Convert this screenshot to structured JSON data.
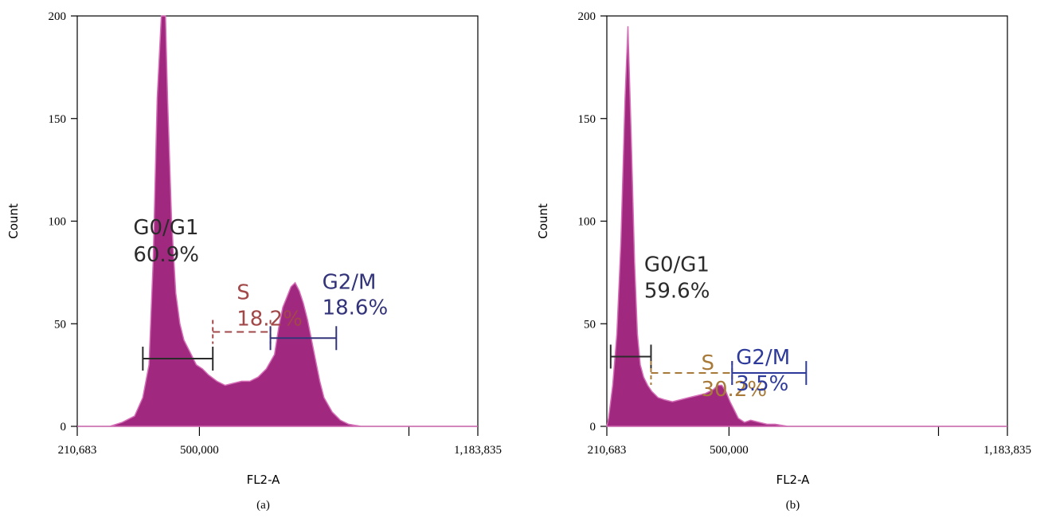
{
  "chart_data": [
    {
      "type": "area",
      "panel_label": "(a)",
      "xlabel": "FL2-A",
      "ylabel": "Count",
      "xlim": [
        210683,
        1183835
      ],
      "ylim": [
        0,
        200
      ],
      "x_tick_labels": [
        "210,683",
        "500,000",
        "1,183,835"
      ],
      "y_tick_labels": [
        "0",
        "50",
        "100",
        "150",
        "200"
      ],
      "colors": {
        "fill": "#a1287f",
        "edge": "#d46fb7"
      },
      "histogram": {
        "x": [
          210683,
          290000,
          320000,
          350000,
          370000,
          385000,
          395000,
          405000,
          415000,
          420000,
          425000,
          430000,
          440000,
          450000,
          460000,
          470000,
          480000,
          490000,
          500000,
          515000,
          530000,
          550000,
          570000,
          590000,
          610000,
          630000,
          650000,
          670000,
          690000,
          700000,
          710000,
          720000,
          730000,
          740000,
          750000,
          760000,
          770000,
          780000,
          790000,
          800000,
          810000,
          830000,
          850000,
          870000,
          900000,
          1183835
        ],
        "y": [
          0,
          0,
          2,
          5,
          14,
          30,
          80,
          160,
          200,
          200,
          200,
          160,
          100,
          65,
          50,
          42,
          38,
          34,
          30,
          28,
          25,
          22,
          20,
          21,
          22,
          22,
          24,
          28,
          35,
          48,
          58,
          63,
          68,
          70,
          66,
          60,
          52,
          42,
          32,
          22,
          14,
          7,
          3,
          1,
          0,
          0
        ]
      },
      "gates": [
        {
          "name": "G0/G1",
          "label": "G0/G1",
          "percent": "60.9%",
          "x_start": 370000,
          "x_end": 540000,
          "y": 33,
          "color": "#2b2b2b",
          "style": "solid"
        },
        {
          "name": "S",
          "label": "S",
          "percent": "18.2%",
          "x_start": 540000,
          "x_end": 680000,
          "y": 46,
          "color": "#a24848",
          "style": "dashed"
        },
        {
          "name": "G2/M",
          "label": "G2/M",
          "percent": "18.6%",
          "x_start": 680000,
          "x_end": 840000,
          "y": 43,
          "color": "#33337a",
          "style": "solid"
        }
      ]
    },
    {
      "type": "area",
      "panel_label": "(b)",
      "xlabel": "FL2-A",
      "ylabel": "Count",
      "xlim": [
        210683,
        1183835
      ],
      "ylim": [
        0,
        200
      ],
      "x_tick_labels": [
        "210,683",
        "500,000",
        "1,183,835"
      ],
      "y_tick_labels": [
        "0",
        "50",
        "100",
        "150",
        "200"
      ],
      "colors": {
        "fill": "#a1287f",
        "edge": "#d46fb7"
      },
      "histogram": {
        "x": [
          210683,
          215000,
          225000,
          235000,
          245000,
          255000,
          262000,
          270000,
          278000,
          285000,
          292000,
          300000,
          310000,
          320000,
          335000,
          350000,
          370000,
          390000,
          410000,
          430000,
          450000,
          470000,
          480000,
          490000,
          500000,
          510000,
          520000,
          530000,
          545000,
          560000,
          580000,
          600000,
          620000,
          650000,
          700000,
          1183835
        ],
        "y": [
          0,
          4,
          20,
          45,
          90,
          160,
          195,
          140,
          80,
          45,
          30,
          24,
          20,
          17,
          14,
          13,
          12,
          13,
          14,
          15,
          16,
          18,
          20,
          20,
          17,
          12,
          8,
          4,
          2,
          3,
          2,
          1,
          1,
          0,
          0,
          0
        ]
      },
      "gates": [
        {
          "name": "G0/G1",
          "label": "G0/G1",
          "percent": "59.6%",
          "x_start": 220000,
          "x_end": 318000,
          "y": 34,
          "color": "#2b2b2b",
          "style": "solid"
        },
        {
          "name": "S",
          "label": "S",
          "percent": "30.2%",
          "x_start": 318000,
          "x_end": 515000,
          "y": 26,
          "color": "#a87a3a",
          "style": "dashed"
        },
        {
          "name": "G2/M",
          "label": "G2/M",
          "percent": "3.5%",
          "x_start": 515000,
          "x_end": 695000,
          "y": 26,
          "color": "#2d3a9a",
          "style": "solid"
        }
      ]
    }
  ]
}
